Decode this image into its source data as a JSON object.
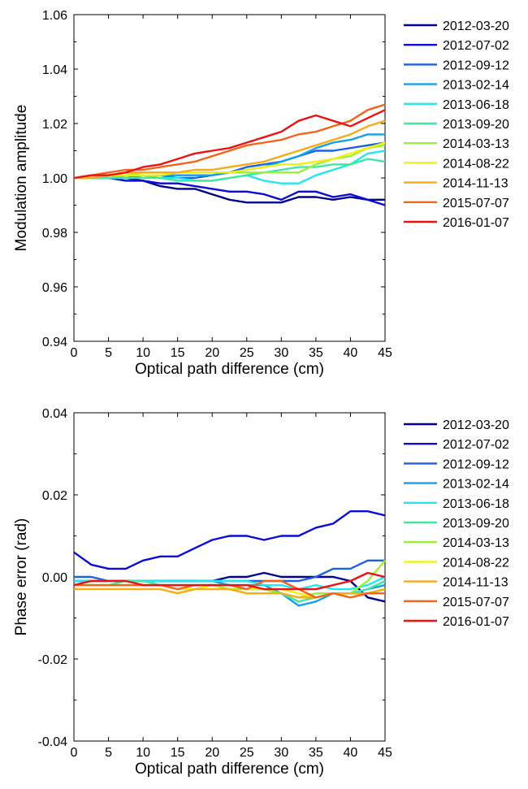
{
  "charts": [
    {
      "type": "line",
      "xlabel": "Optical path difference (cm)",
      "ylabel": "Modulation amplitude",
      "xlim": [
        0,
        45
      ],
      "ylim": [
        0.94,
        1.06
      ],
      "xticks": [
        "0",
        "5",
        "10",
        "15",
        "20",
        "25",
        "30",
        "35",
        "40",
        "45"
      ],
      "yticks": [
        "0.94",
        "0.96",
        "0.98",
        "1.00",
        "1.02",
        "1.04",
        "1.06"
      ],
      "legend_position": "right-outside",
      "x": [
        0,
        2.5,
        5,
        7.5,
        10,
        12.5,
        15,
        17.5,
        20,
        22.5,
        25,
        27.5,
        30,
        32.5,
        35,
        37.5,
        40,
        42.5,
        45
      ],
      "series": [
        {
          "name": "2012-03-20",
          "color": "#00008f",
          "values": [
            1.0,
            1.0,
            1.0,
            1.0,
            0.999,
            0.997,
            0.996,
            0.996,
            0.994,
            0.992,
            0.991,
            0.991,
            0.991,
            0.993,
            0.993,
            0.992,
            0.993,
            0.992,
            0.992
          ]
        },
        {
          "name": "2012-07-02",
          "color": "#0b0bd6",
          "values": [
            1.0,
            1.0,
            1.0,
            0.999,
            0.999,
            0.998,
            0.998,
            0.997,
            0.996,
            0.995,
            0.995,
            0.994,
            0.992,
            0.995,
            0.995,
            0.993,
            0.994,
            0.992,
            0.99
          ]
        },
        {
          "name": "2012-09-12",
          "color": "#1f5fe0",
          "values": [
            1.0,
            1.0,
            1.0,
            1.0,
            1.001,
            1.001,
            1.0,
            1.0,
            1.001,
            1.002,
            1.004,
            1.005,
            1.006,
            1.008,
            1.01,
            1.01,
            1.011,
            1.012,
            1.013
          ]
        },
        {
          "name": "2013-02-14",
          "color": "#12a0ea",
          "values": [
            1.0,
            1.0,
            1.0,
            1.0,
            1.001,
            1.001,
            1.001,
            1.001,
            1.001,
            1.002,
            1.003,
            1.004,
            1.006,
            1.008,
            1.011,
            1.013,
            1.014,
            1.016,
            1.016
          ]
        },
        {
          "name": "2013-06-18",
          "color": "#22e6f0",
          "values": [
            1.0,
            1.0,
            1.0,
            1.001,
            1.001,
            1.0,
            1.0,
            0.999,
            0.999,
            1.0,
            1.001,
            0.999,
            0.998,
            0.998,
            1.001,
            1.003,
            1.005,
            1.009,
            1.01
          ]
        },
        {
          "name": "2013-09-20",
          "color": "#3fe8a0",
          "values": [
            1.0,
            1.0,
            1.0,
            1.0,
            1.0,
            1.0,
            0.999,
            0.999,
            0.999,
            1.0,
            1.001,
            1.002,
            1.003,
            1.004,
            1.004,
            1.005,
            1.005,
            1.007,
            1.006
          ]
        },
        {
          "name": "2014-03-13",
          "color": "#98f03a",
          "values": [
            1.0,
            1.0,
            1.001,
            1.001,
            1.002,
            1.002,
            1.002,
            1.002,
            1.002,
            1.002,
            1.002,
            1.002,
            1.002,
            1.002,
            1.005,
            1.007,
            1.008,
            1.011,
            1.012
          ]
        },
        {
          "name": "2014-08-22",
          "color": "#f0f010",
          "values": [
            1.0,
            1.0,
            1.001,
            1.001,
            1.001,
            1.001,
            1.002,
            1.002,
            1.002,
            1.002,
            1.003,
            1.004,
            1.005,
            1.005,
            1.006,
            1.007,
            1.009,
            1.011,
            1.013
          ]
        },
        {
          "name": "2014-11-13",
          "color": "#f8aa18",
          "values": [
            1.0,
            1.0,
            1.001,
            1.002,
            1.002,
            1.002,
            1.002,
            1.003,
            1.003,
            1.004,
            1.005,
            1.006,
            1.008,
            1.01,
            1.012,
            1.014,
            1.016,
            1.019,
            1.021
          ]
        },
        {
          "name": "2015-07-07",
          "color": "#f26418",
          "values": [
            1.0,
            1.001,
            1.002,
            1.003,
            1.003,
            1.004,
            1.005,
            1.006,
            1.008,
            1.01,
            1.012,
            1.013,
            1.014,
            1.016,
            1.017,
            1.019,
            1.021,
            1.025,
            1.027
          ]
        },
        {
          "name": "2016-01-07",
          "color": "#ed1212",
          "values": [
            1.0,
            1.001,
            1.001,
            1.002,
            1.004,
            1.005,
            1.007,
            1.009,
            1.01,
            1.011,
            1.013,
            1.015,
            1.017,
            1.021,
            1.023,
            1.021,
            1.019,
            1.022,
            1.025
          ]
        }
      ]
    },
    {
      "type": "line",
      "xlabel": "Optical path difference (cm)",
      "ylabel": "Phase error (rad)",
      "xlim": [
        0,
        45
      ],
      "ylim": [
        -0.04,
        0.04
      ],
      "xticks": [
        "0",
        "5",
        "10",
        "15",
        "20",
        "25",
        "30",
        "35",
        "40",
        "45"
      ],
      "yticks": [
        "-0.04",
        "-0.02",
        "0.00",
        "0.02",
        "0.04"
      ],
      "legend_position": "right-outside",
      "x": [
        0,
        2.5,
        5,
        7.5,
        10,
        12.5,
        15,
        17.5,
        20,
        22.5,
        25,
        27.5,
        30,
        32.5,
        35,
        37.5,
        40,
        42.5,
        45
      ],
      "series": [
        {
          "name": "2012-03-20",
          "color": "#00008f",
          "values": [
            -0.001,
            -0.001,
            -0.001,
            -0.001,
            -0.001,
            -0.001,
            -0.001,
            -0.001,
            -0.001,
            0.0,
            0.0,
            0.001,
            0.0,
            0.0,
            0.0,
            0.0,
            -0.001,
            -0.005,
            -0.006
          ]
        },
        {
          "name": "2012-07-02",
          "color": "#0b0bd6",
          "values": [
            0.006,
            0.003,
            0.002,
            0.002,
            0.004,
            0.005,
            0.005,
            0.007,
            0.009,
            0.01,
            0.01,
            0.009,
            0.01,
            0.01,
            0.012,
            0.013,
            0.016,
            0.016,
            0.015
          ]
        },
        {
          "name": "2012-09-12",
          "color": "#1f5fe0",
          "values": [
            0.0,
            0.0,
            -0.001,
            -0.001,
            -0.001,
            -0.001,
            -0.001,
            -0.001,
            -0.001,
            -0.001,
            -0.001,
            -0.001,
            -0.001,
            -0.001,
            0.0,
            0.002,
            0.002,
            0.004,
            0.004
          ]
        },
        {
          "name": "2013-02-14",
          "color": "#12a0ea",
          "values": [
            -0.001,
            -0.001,
            -0.001,
            -0.001,
            -0.001,
            -0.001,
            -0.001,
            -0.001,
            -0.001,
            -0.002,
            -0.002,
            -0.002,
            -0.004,
            -0.007,
            -0.006,
            -0.004,
            -0.004,
            -0.003,
            -0.002
          ]
        },
        {
          "name": "2013-06-18",
          "color": "#22e6f0",
          "values": [
            -0.001,
            -0.001,
            -0.001,
            -0.001,
            -0.001,
            -0.001,
            -0.001,
            -0.001,
            -0.001,
            -0.001,
            -0.001,
            -0.002,
            -0.002,
            -0.003,
            -0.002,
            -0.003,
            -0.003,
            -0.002,
            0.0
          ]
        },
        {
          "name": "2013-09-20",
          "color": "#3fe8a0",
          "values": [
            -0.002,
            -0.002,
            -0.002,
            -0.001,
            -0.001,
            -0.002,
            -0.002,
            -0.002,
            -0.002,
            -0.002,
            -0.003,
            -0.003,
            -0.004,
            -0.006,
            -0.005,
            -0.004,
            -0.004,
            -0.003,
            -0.001
          ]
        },
        {
          "name": "2014-03-13",
          "color": "#98f03a",
          "values": [
            -0.002,
            -0.002,
            -0.002,
            -0.002,
            -0.002,
            -0.002,
            -0.002,
            -0.002,
            -0.002,
            -0.003,
            -0.003,
            -0.003,
            -0.004,
            -0.005,
            -0.004,
            -0.004,
            -0.004,
            -0.001,
            0.004
          ]
        },
        {
          "name": "2014-08-22",
          "color": "#f0f010",
          "values": [
            -0.002,
            -0.002,
            -0.002,
            -0.002,
            -0.002,
            -0.002,
            -0.003,
            -0.003,
            -0.002,
            -0.002,
            -0.003,
            -0.003,
            -0.003,
            -0.004,
            -0.005,
            -0.004,
            -0.004,
            -0.004,
            -0.003
          ]
        },
        {
          "name": "2014-11-13",
          "color": "#f8aa18",
          "values": [
            -0.003,
            -0.003,
            -0.003,
            -0.003,
            -0.003,
            -0.003,
            -0.004,
            -0.003,
            -0.003,
            -0.003,
            -0.004,
            -0.004,
            -0.004,
            -0.005,
            -0.005,
            -0.004,
            -0.004,
            -0.004,
            -0.003
          ]
        },
        {
          "name": "2015-07-07",
          "color": "#f26418",
          "values": [
            -0.002,
            -0.002,
            -0.002,
            -0.002,
            -0.002,
            -0.002,
            -0.003,
            -0.002,
            -0.002,
            -0.002,
            -0.003,
            -0.001,
            -0.001,
            -0.003,
            -0.005,
            -0.004,
            -0.005,
            -0.004,
            -0.004
          ]
        },
        {
          "name": "2016-01-07",
          "color": "#ed1212",
          "values": [
            -0.002,
            -0.001,
            -0.001,
            -0.001,
            -0.002,
            -0.002,
            -0.002,
            -0.002,
            -0.002,
            -0.002,
            -0.002,
            -0.003,
            -0.003,
            -0.003,
            -0.003,
            -0.002,
            -0.001,
            0.001,
            0.0
          ]
        }
      ]
    }
  ]
}
